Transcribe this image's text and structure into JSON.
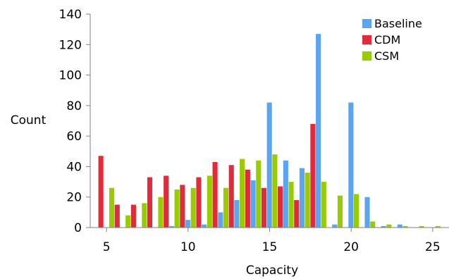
{
  "chart_data": {
    "type": "bar",
    "title": "",
    "xlabel": "Capacity",
    "ylabel": "Count",
    "xlim": [
      4,
      26
    ],
    "ylim": [
      0,
      140
    ],
    "xticks": [
      5,
      10,
      15,
      20,
      25
    ],
    "yticks": [
      0,
      20,
      40,
      60,
      80,
      100,
      120,
      140
    ],
    "grid": false,
    "legend_position": "top-right",
    "series": [
      {
        "name": "Baseline",
        "color": "#5aa5f0",
        "x": [
          9,
          10,
          11,
          12,
          13,
          14,
          15,
          16,
          17,
          18,
          19,
          20,
          21,
          22,
          23
        ],
        "values": [
          1,
          5,
          2,
          10,
          18,
          31,
          82,
          44,
          39,
          127,
          2,
          82,
          20,
          1,
          2
        ]
      },
      {
        "name": "CDM",
        "color": "#e02b3a",
        "x": [
          5,
          6,
          7,
          8,
          9,
          10,
          11,
          12,
          13,
          14,
          15,
          16,
          17,
          18
        ],
        "values": [
          47,
          15,
          15,
          33,
          34,
          28,
          33,
          43,
          41,
          38,
          26,
          27,
          18,
          68
        ]
      },
      {
        "name": "CSM",
        "color": "#99cc00",
        "x": [
          5,
          6,
          7,
          8,
          9,
          10,
          11,
          12,
          13,
          14,
          15,
          16,
          17,
          18,
          19,
          20,
          21,
          22,
          23,
          24,
          25
        ],
        "values": [
          26,
          8,
          16,
          20,
          25,
          26,
          34,
          26,
          45,
          44,
          48,
          30,
          36,
          30,
          21,
          22,
          4,
          2,
          1,
          1,
          1
        ]
      }
    ]
  }
}
